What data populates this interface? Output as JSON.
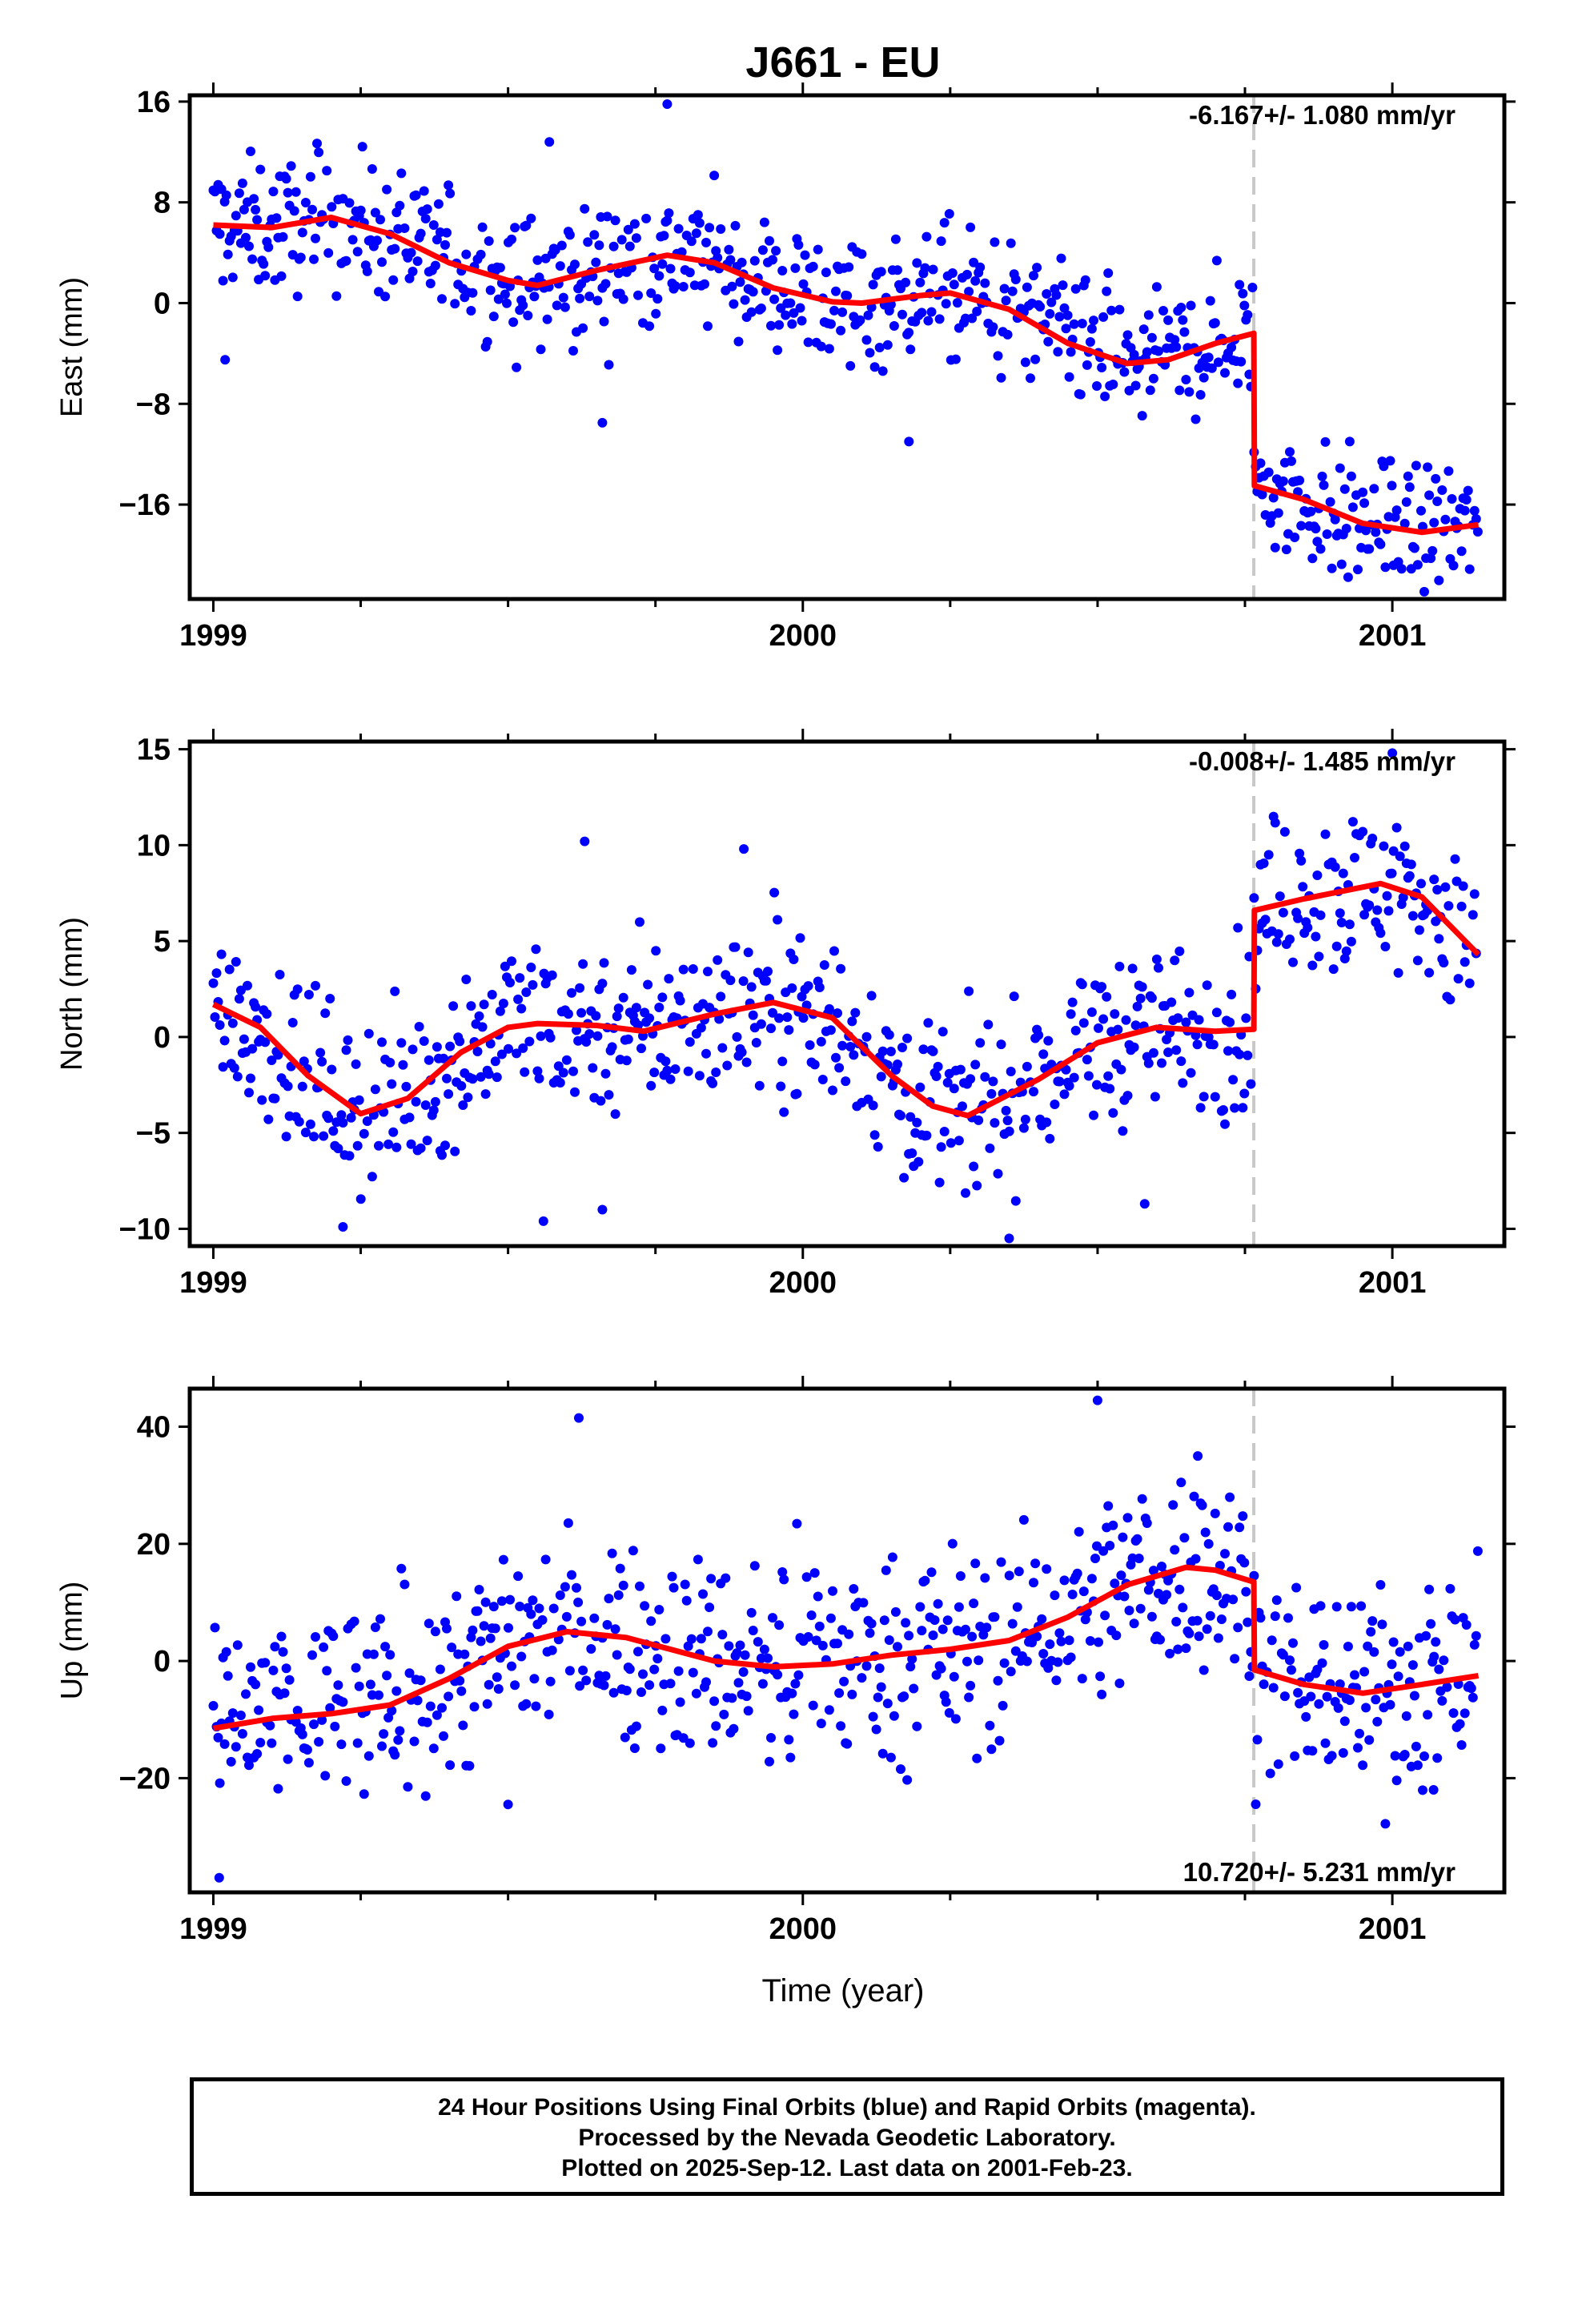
{
  "chart_data": {
    "type": "scatter",
    "title": "J661 - EU",
    "xlabel": "Time (year)",
    "xlim": [
      1998.96,
      2001.19
    ],
    "xticks": [
      "1999",
      "2000",
      "2001"
    ],
    "offset_epoch": 2000.765,
    "data_end": 2001.146,
    "series_names": [
      "24 Hour Positions (Final Orbits)",
      "Model fit"
    ],
    "panels": [
      {
        "name": "east",
        "ylabel": "East (mm)",
        "ylim": [
          -23.5,
          16.5
        ],
        "yticks": [
          16,
          8,
          0,
          -8,
          -16
        ],
        "rate_text": "-6.167+/- 1.080 mm/yr",
        "rate_position": "top-right",
        "rate_mm_per_yr": -6.167,
        "rate_sigma": 1.08,
        "offset_mm": -12.0,
        "model": [
          [
            1999.0,
            6.2
          ],
          [
            1999.1,
            6.0
          ],
          [
            1999.2,
            6.8
          ],
          [
            1999.3,
            5.5
          ],
          [
            1999.4,
            3.2
          ],
          [
            1999.5,
            1.8
          ],
          [
            1999.55,
            1.4
          ],
          [
            1999.65,
            2.6
          ],
          [
            1999.77,
            3.8
          ],
          [
            1999.85,
            3.2
          ],
          [
            1999.95,
            1.2
          ],
          [
            2000.05,
            0.1
          ],
          [
            2000.1,
            0.0
          ],
          [
            2000.2,
            0.6
          ],
          [
            2000.25,
            0.8
          ],
          [
            2000.35,
            -0.5
          ],
          [
            2000.45,
            -3.2
          ],
          [
            2000.55,
            -4.8
          ],
          [
            2000.62,
            -4.5
          ],
          [
            2000.7,
            -3.2
          ],
          [
            2000.765,
            -2.4
          ],
          [
            2000.766,
            -14.5
          ],
          [
            2000.85,
            -15.6
          ],
          [
            2000.95,
            -17.5
          ],
          [
            2001.05,
            -18.2
          ],
          [
            2001.146,
            -17.6
          ]
        ],
        "noise_mm": 2.6,
        "outliers": [
          [
            1999.02,
            -4.5
          ],
          [
            1999.77,
            15.8
          ],
          [
            1999.66,
            -9.5
          ],
          [
            1999.57,
            12.8
          ],
          [
            2000.18,
            -11.0
          ]
        ]
      },
      {
        "name": "north",
        "ylabel": "North (mm)",
        "ylim": [
          -10.9,
          15.4
        ],
        "yticks": [
          15,
          10,
          5,
          0,
          -5,
          -10
        ],
        "rate_text": "-0.008+/- 1.485 mm/yr",
        "rate_position": "top-right",
        "rate_mm_per_yr": -0.008,
        "rate_sigma": 1.485,
        "offset_mm": 6.2,
        "model": [
          [
            1999.0,
            1.7
          ],
          [
            1999.08,
            0.5
          ],
          [
            1999.16,
            -2.0
          ],
          [
            1999.25,
            -4.0
          ],
          [
            1999.33,
            -3.2
          ],
          [
            1999.42,
            -0.8
          ],
          [
            1999.5,
            0.5
          ],
          [
            1999.55,
            0.7
          ],
          [
            1999.65,
            0.6
          ],
          [
            1999.73,
            0.3
          ],
          [
            1999.85,
            1.2
          ],
          [
            1999.95,
            1.8
          ],
          [
            2000.05,
            1.0
          ],
          [
            2000.15,
            -2.0
          ],
          [
            2000.22,
            -3.6
          ],
          [
            2000.28,
            -4.1
          ],
          [
            2000.4,
            -2.2
          ],
          [
            2000.5,
            -0.3
          ],
          [
            2000.6,
            0.5
          ],
          [
            2000.7,
            0.3
          ],
          [
            2000.765,
            0.4
          ],
          [
            2000.766,
            6.6
          ],
          [
            2000.85,
            7.2
          ],
          [
            2000.98,
            8.0
          ],
          [
            2001.05,
            7.3
          ],
          [
            2001.146,
            4.3
          ]
        ],
        "noise_mm": 2.2,
        "outliers": [
          [
            1999.56,
            -9.6
          ],
          [
            1999.66,
            -9.0
          ],
          [
            1999.63,
            10.2
          ],
          [
            1999.9,
            9.8
          ],
          [
            2000.35,
            -10.5
          ],
          [
            2000.58,
            -8.7
          ],
          [
            2001.0,
            14.8
          ],
          [
            1999.22,
            -9.9
          ]
        ]
      },
      {
        "name": "up",
        "ylabel": "Up (mm)",
        "ylim": [
          -39.5,
          46.5
        ],
        "yticks": [
          40,
          20,
          0,
          -20
        ],
        "rate_text": "10.720+/- 5.231 mm/yr",
        "rate_position": "bottom-right",
        "rate_mm_per_yr": 10.72,
        "rate_sigma": 5.231,
        "offset_mm": -15.0,
        "model": [
          [
            1999.0,
            -11.5
          ],
          [
            1999.1,
            -9.8
          ],
          [
            1999.2,
            -9.0
          ],
          [
            1999.3,
            -7.5
          ],
          [
            1999.4,
            -3.0
          ],
          [
            1999.5,
            2.5
          ],
          [
            1999.6,
            5.0
          ],
          [
            1999.7,
            4.0
          ],
          [
            1999.85,
            0.0
          ],
          [
            1999.95,
            -1.0
          ],
          [
            2000.05,
            -0.5
          ],
          [
            2000.15,
            1.0
          ],
          [
            2000.25,
            2.0
          ],
          [
            2000.35,
            3.5
          ],
          [
            2000.45,
            7.5
          ],
          [
            2000.55,
            13.0
          ],
          [
            2000.65,
            16.0
          ],
          [
            2000.7,
            15.5
          ],
          [
            2000.765,
            13.5
          ],
          [
            2000.766,
            -1.5
          ],
          [
            2000.85,
            -4.0
          ],
          [
            2000.95,
            -5.5
          ],
          [
            2001.05,
            -4.0
          ],
          [
            2001.146,
            -2.5
          ]
        ],
        "noise_mm": 8.5,
        "outliers": [
          [
            1999.01,
            -37.0
          ],
          [
            1999.62,
            41.5
          ],
          [
            2000.5,
            44.5
          ],
          [
            2000.67,
            35.0
          ],
          [
            1999.5,
            -24.5
          ],
          [
            2001.07,
            -22.0
          ]
        ]
      }
    ]
  },
  "footer": {
    "line1": "24 Hour Positions Using Final Orbits (blue) and Rapid Orbits (magenta).",
    "line2": "Processed by the Nevada Geodetic Laboratory.",
    "line3": "Plotted on 2025-Sep-12. Last data on 2001-Feb-23."
  }
}
